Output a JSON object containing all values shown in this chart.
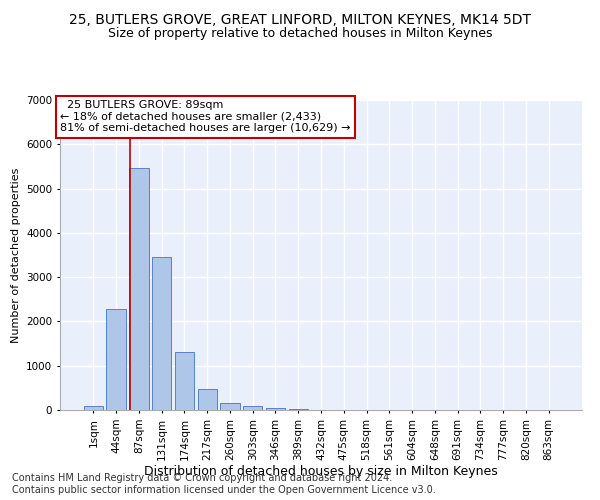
{
  "title": "25, BUTLERS GROVE, GREAT LINFORD, MILTON KEYNES, MK14 5DT",
  "subtitle": "Size of property relative to detached houses in Milton Keynes",
  "xlabel": "Distribution of detached houses by size in Milton Keynes",
  "ylabel": "Number of detached properties",
  "footer_line1": "Contains HM Land Registry data © Crown copyright and database right 2024.",
  "footer_line2": "Contains public sector information licensed under the Open Government Licence v3.0.",
  "annotation_title": "25 BUTLERS GROVE: 89sqm",
  "annotation_line1": "← 18% of detached houses are smaller (2,433)",
  "annotation_line2": "81% of semi-detached houses are larger (10,629) →",
  "bar_labels": [
    "1sqm",
    "44sqm",
    "87sqm",
    "131sqm",
    "174sqm",
    "217sqm",
    "260sqm",
    "303sqm",
    "346sqm",
    "389sqm",
    "432sqm",
    "475sqm",
    "518sqm",
    "561sqm",
    "604sqm",
    "648sqm",
    "691sqm",
    "734sqm",
    "777sqm",
    "820sqm",
    "863sqm"
  ],
  "bar_values": [
    80,
    2280,
    5470,
    3450,
    1310,
    470,
    155,
    95,
    55,
    30,
    0,
    0,
    0,
    0,
    0,
    0,
    0,
    0,
    0,
    0,
    0
  ],
  "bar_color": "#aec6e8",
  "bar_edge_color": "#4472c4",
  "vline_color": "#c00000",
  "vline_x_index": 1.6,
  "annotation_box_edge_color": "#c00000",
  "ylim": [
    0,
    7000
  ],
  "yticks": [
    0,
    1000,
    2000,
    3000,
    4000,
    5000,
    6000,
    7000
  ],
  "background_color": "#eaf0fb",
  "grid_color": "#ffffff",
  "title_fontsize": 10,
  "subtitle_fontsize": 9,
  "xlabel_fontsize": 9,
  "ylabel_fontsize": 8,
  "tick_fontsize": 7.5,
  "annotation_fontsize": 8,
  "footer_fontsize": 7
}
